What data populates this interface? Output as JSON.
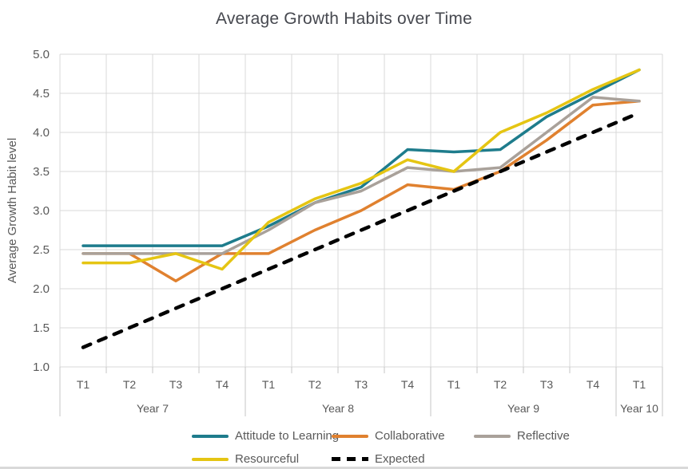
{
  "chart_data": {
    "type": "line",
    "title": "Average Growth Habits over Time",
    "xlabel": "",
    "ylabel": "Average Growth Habit level",
    "ylim": [
      1.0,
      5.0
    ],
    "ytick_step": 0.5,
    "grid": true,
    "legend_position": "bottom",
    "categories": [
      "T1",
      "T2",
      "T3",
      "T4",
      "T1",
      "T2",
      "T3",
      "T4",
      "T1",
      "T2",
      "T3",
      "T4",
      "T1"
    ],
    "year_groups": [
      {
        "label": "Year 7",
        "count": 4
      },
      {
        "label": "Year 8",
        "count": 4
      },
      {
        "label": "Year 9",
        "count": 4
      },
      {
        "label": "Year 10",
        "count": 1
      }
    ],
    "series": [
      {
        "name": "Attitude to Learning",
        "color": "#1E7C8C",
        "dash": false,
        "values": [
          2.55,
          2.55,
          2.55,
          2.55,
          2.8,
          3.1,
          3.3,
          3.78,
          3.75,
          3.78,
          4.2,
          4.5,
          4.8
        ]
      },
      {
        "name": "Collaborative",
        "color": "#E0812F",
        "dash": false,
        "values": [
          2.45,
          2.45,
          2.1,
          2.45,
          2.45,
          2.75,
          3.0,
          3.33,
          3.27,
          3.5,
          3.9,
          4.35,
          4.4
        ]
      },
      {
        "name": "Reflective",
        "color": "#A9A19A",
        "dash": false,
        "values": [
          2.45,
          2.45,
          2.45,
          2.45,
          2.75,
          3.1,
          3.25,
          3.55,
          3.5,
          3.55,
          4.0,
          4.45,
          4.4
        ]
      },
      {
        "name": "Resourceful",
        "color": "#E5C513",
        "dash": false,
        "values": [
          2.33,
          2.33,
          2.45,
          2.25,
          2.85,
          3.15,
          3.35,
          3.65,
          3.5,
          4.0,
          4.25,
          4.55,
          4.8
        ]
      },
      {
        "name": "Expected",
        "color": "#000000",
        "dash": true,
        "values": [
          1.25,
          1.5,
          1.75,
          2.0,
          2.25,
          2.5,
          2.75,
          3.0,
          3.25,
          3.5,
          3.75,
          4.0,
          4.25
        ]
      }
    ],
    "colors": {
      "title_text": "#46484F",
      "axis_text": "#595959",
      "gridline": "#D9D9D9",
      "tick_line": "#C4C4C4"
    }
  }
}
